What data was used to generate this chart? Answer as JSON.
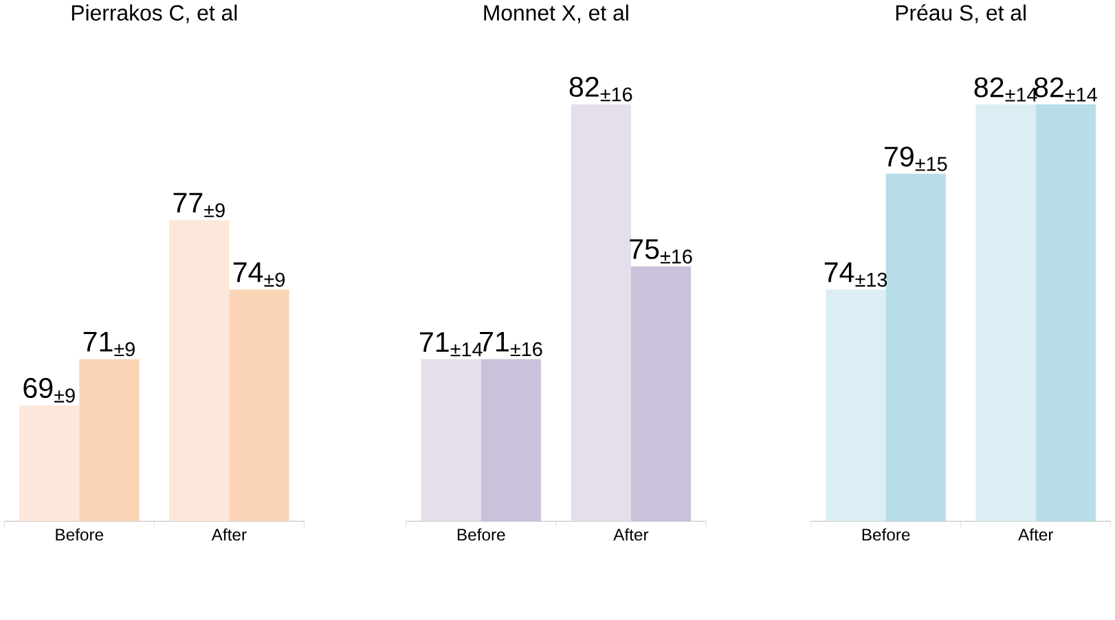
{
  "chart_data": [
    {
      "type": "bar",
      "title": "Pierrakos C, et al",
      "categories": [
        "Before",
        "After"
      ],
      "ylim": [
        64,
        77
      ],
      "tick_labels": "x",
      "series": [
        {
          "color": "#fce8da",
          "values": [
            69,
            77
          ],
          "value_labels": [
            "69$_{±9}$",
            "77$_{±9}$"
          ]
        },
        {
          "color": "#fbd5b5",
          "values": [
            71,
            74
          ],
          "value_labels": [
            "71$_{±9}$",
            "74$_{±9}$"
          ]
        }
      ]
    },
    {
      "type": "bar",
      "title": "Monnet X, et al",
      "categories": [
        "Before",
        "After"
      ],
      "ylim": [
        64,
        82
      ],
      "tick_labels": "x",
      "series": [
        {
          "color": "#e5dfec",
          "values": [
            71,
            82
          ],
          "value_labels": [
            "71$_{±14}$",
            "82$_{±16}$"
          ]
        },
        {
          "color": "#ccc1da",
          "values": [
            71,
            75
          ],
          "value_labels": [
            "71$_{±16}$",
            "75$_{±16}$"
          ]
        }
      ]
    },
    {
      "type": "bar",
      "title": "Préau S, et al",
      "categories": [
        "Before",
        "After"
      ],
      "ylim": [
        64,
        82
      ],
      "tick_labels": "x",
      "series": [
        {
          "color": "#dbeef4",
          "values": [
            74,
            82
          ],
          "value_labels": [
            "74$_{±13}$",
            "82$_{±14}$"
          ]
        },
        {
          "color": "#b7dee8",
          "values": [
            79,
            82
          ],
          "value_labels": [
            "79$_{±15}$",
            "82$_{±14}$"
          ]
        }
      ]
    }
  ]
}
